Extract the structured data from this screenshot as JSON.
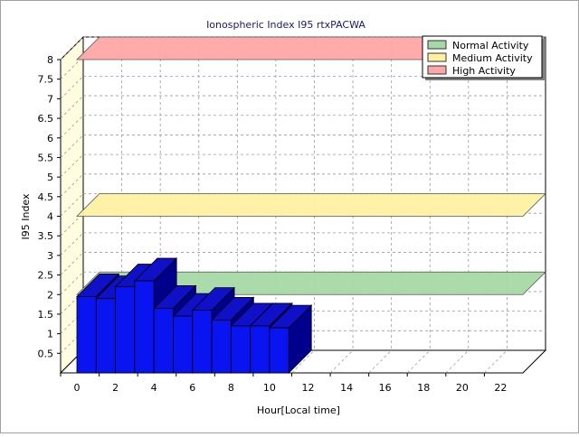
{
  "chart_data": {
    "type": "bar",
    "title": "Ionospheric Index I95 rtxPACWA",
    "xlabel": "Hour[Local time]",
    "ylabel": "I95 Index",
    "xlim": [
      0,
      24
    ],
    "ylim": [
      0,
      8
    ],
    "x_ticks": [
      "0",
      "2",
      "4",
      "6",
      "8",
      "10",
      "12",
      "14",
      "16",
      "18",
      "20",
      "22"
    ],
    "y_ticks": [
      "0.5",
      "1",
      "1.5",
      "2",
      "2.5",
      "3",
      "3.5",
      "4",
      "4.5",
      "5",
      "5.5",
      "6",
      "6.5",
      "7",
      "7.5",
      "8"
    ],
    "grid": true,
    "legend_position": "top-right",
    "x": [
      0,
      1,
      2,
      3,
      4,
      5,
      6,
      7,
      8,
      9,
      10
    ],
    "values": [
      1.95,
      1.9,
      2.2,
      2.35,
      1.65,
      1.45,
      1.6,
      1.35,
      1.2,
      1.2,
      1.15
    ],
    "bar_color": "#0a14f0",
    "bands": [
      {
        "name": "Normal Activity",
        "level": 2,
        "color": "#a6d9a6"
      },
      {
        "name": "Medium Activity",
        "level": 4,
        "color": "#fff0a0"
      },
      {
        "name": "High Activity",
        "level": 8,
        "color": "#ffa6a6"
      }
    ]
  }
}
